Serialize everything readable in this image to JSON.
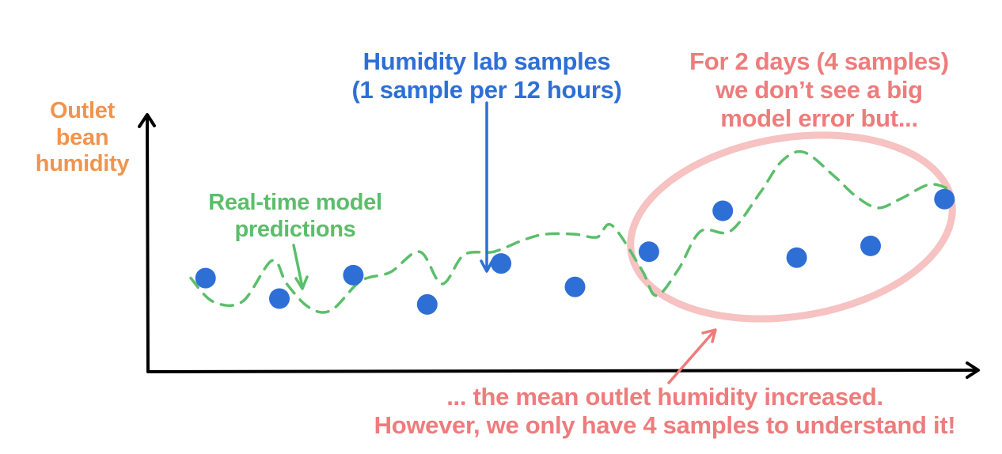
{
  "colors": {
    "axis": "#000000",
    "ylabel": "#F0944E",
    "model": "#5BBE6A",
    "samples": "#2E6FD6",
    "callout": "#EE7C7C",
    "ellipse": "#F6C2C2"
  },
  "labels": {
    "ylabel": [
      "Outlet",
      "bean",
      "humidity"
    ],
    "model": [
      "Real-time model",
      "predictions"
    ],
    "samples": [
      "Humidity lab samples",
      "(1 sample per 12 hours)"
    ],
    "callout": [
      "For 2 days (4 samples)",
      "we don’t see a big",
      "model error but..."
    ],
    "conclusion": [
      "... the mean outlet humidity increased.",
      "However, we only have 4 samples to understand it!"
    ]
  },
  "chart_data": {
    "type": "line",
    "xlabel": "",
    "ylabel": "Outlet bean humidity",
    "series": [
      {
        "name": "Real-time model predictions",
        "style": "dashed",
        "x": [
          0.3,
          0.6,
          1.0,
          1.4,
          1.6,
          1.9,
          2.2,
          2.6,
          3.0,
          3.4,
          3.7,
          4.0,
          4.4,
          4.8,
          5.1,
          5.5,
          5.8,
          6.0,
          6.4,
          6.6,
          6.9,
          7.2,
          7.6,
          8.0,
          8.3,
          8.6,
          9.0,
          9.3,
          9.6,
          9.9,
          10.3,
          10.6
        ],
        "y": [
          3.2,
          2.4,
          2.4,
          3.8,
          3.0,
          2.2,
          2.1,
          3.1,
          3.4,
          4.1,
          3.0,
          4.0,
          4.1,
          4.5,
          4.7,
          4.7,
          4.6,
          5.0,
          3.5,
          2.6,
          3.5,
          4.8,
          4.8,
          6.1,
          7.2,
          7.5,
          6.7,
          6.0,
          5.6,
          5.9,
          6.4,
          6.2
        ]
      },
      {
        "name": "Humidity lab samples",
        "style": "points",
        "x": [
          0.5,
          1.5,
          2.5,
          3.5,
          4.5,
          5.5,
          6.5,
          7.5,
          8.5,
          9.5,
          10.5
        ],
        "y": [
          3.2,
          2.5,
          3.3,
          2.3,
          3.7,
          2.9,
          4.1,
          5.5,
          3.9,
          4.3,
          5.9
        ]
      }
    ],
    "xlim": [
      0,
      11
    ],
    "ylim": [
      0,
      10
    ],
    "highlight": {
      "x_range": [
        6.5,
        9.5
      ],
      "label": "For 2 days (4 samples)"
    },
    "grid": false
  }
}
